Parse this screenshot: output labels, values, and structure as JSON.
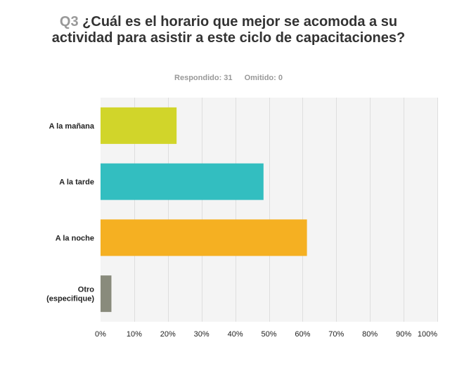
{
  "header": {
    "question_number": "Q3",
    "question_text": "¿Cuál es el horario que mejor se acomoda a su actividad para asistir a este ciclo de capacitaciones?",
    "answered_label": "Respondido: 31",
    "skipped_label": "Omitido: 0"
  },
  "colors": {
    "plot_background": "#f4f4f4",
    "grid": "#dedede"
  },
  "chart_data": {
    "type": "bar",
    "orientation": "horizontal",
    "categories": [
      "A la mañana",
      "A la tarde",
      "A la noche",
      "Otro\n(especifique)"
    ],
    "values": [
      22.58,
      48.39,
      61.29,
      3.23
    ],
    "colors": [
      "#d1d52a",
      "#33bec0",
      "#f5b022",
      "#898b7c"
    ],
    "ticks": [
      "0%",
      "10%",
      "20%",
      "30%",
      "40%",
      "50%",
      "60%",
      "70%",
      "80%",
      "90%",
      "100%"
    ],
    "xlim": [
      0,
      100
    ],
    "grid": true,
    "title": "",
    "xlabel": "",
    "ylabel": ""
  }
}
